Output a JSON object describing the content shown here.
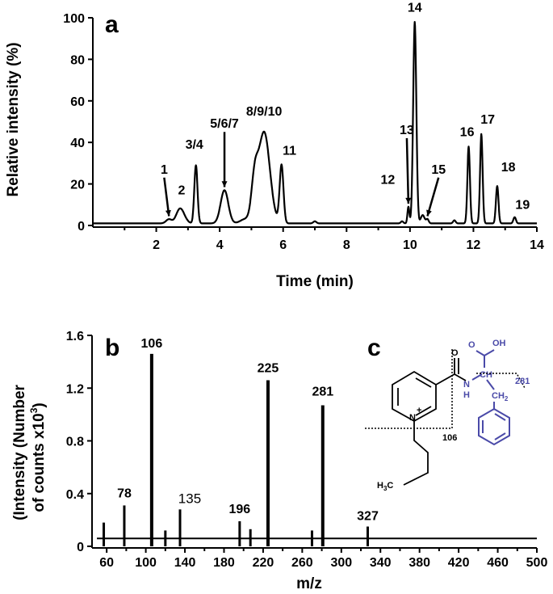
{
  "chart_data": [
    {
      "type": "line",
      "panel_label": "a",
      "xlabel": "Time (min)",
      "ylabel": "Relative intensity (%)",
      "xlim": [
        0,
        14
      ],
      "ylim": [
        0,
        100
      ],
      "x_ticks": [
        2,
        4,
        6,
        8,
        10,
        12,
        14
      ],
      "y_ticks": [
        0,
        20,
        40,
        60,
        80,
        100
      ],
      "x_tick_labels": [
        "2",
        "4",
        "6",
        "8",
        "10",
        "12",
        "14"
      ],
      "y_tick_labels": [
        "0",
        "20",
        "40",
        "60",
        "80",
        "100"
      ],
      "peaks": [
        {
          "label": "1",
          "time": 2.4,
          "intensity": 3
        },
        {
          "label": "2",
          "time": 2.8,
          "intensity": 6
        },
        {
          "label": "3/4",
          "time": 3.25,
          "intensity": 29
        },
        {
          "label": "5/6/7",
          "time": 4.15,
          "intensity": 17
        },
        {
          "label": "8/9/10",
          "time": 5.4,
          "intensity": 45
        },
        {
          "label": "11",
          "time": 5.95,
          "intensity": 29
        },
        {
          "label": "12",
          "time": 9.75,
          "intensity": 2
        },
        {
          "label": "13",
          "time": 9.95,
          "intensity": 9
        },
        {
          "label": "14",
          "time": 10.15,
          "intensity": 98
        },
        {
          "label": "15",
          "time": 10.55,
          "intensity": 3
        },
        {
          "label": "16",
          "time": 11.85,
          "intensity": 38
        },
        {
          "label": "17",
          "time": 12.25,
          "intensity": 44
        },
        {
          "label": "18",
          "time": 12.75,
          "intensity": 19
        },
        {
          "label": "19",
          "time": 13.3,
          "intensity": 4
        }
      ]
    },
    {
      "type": "bar",
      "panel_label": "b",
      "xlabel": "m/z",
      "ylabel_line1": "(Intensity (Number",
      "ylabel_line2": "of counts x10",
      "ylabel_sup": "3",
      "ylabel_close": ")",
      "xlim": [
        45,
        500
      ],
      "ylim": [
        0,
        1.6
      ],
      "x_ticks": [
        60,
        100,
        140,
        180,
        220,
        260,
        300,
        340,
        380,
        420,
        460,
        500
      ],
      "x_tick_labels": [
        "60",
        "100",
        "140",
        "180",
        "220",
        "260",
        "300",
        "340",
        "380",
        "420",
        "460",
        "500"
      ],
      "y_ticks": [
        0,
        0.4,
        0.8,
        1.2,
        1.6
      ],
      "y_tick_labels": [
        "0",
        "0.4",
        "0.8",
        "1.2",
        "1.6"
      ],
      "baseline": 0.06,
      "peaks": [
        {
          "mz": 57,
          "intensity": 0.18
        },
        {
          "mz": 78,
          "intensity": 0.31,
          "label": "78"
        },
        {
          "mz": 106,
          "intensity": 1.46,
          "label": "106"
        },
        {
          "mz": 120,
          "intensity": 0.12
        },
        {
          "mz": 135,
          "intensity": 0.28,
          "label": "135"
        },
        {
          "mz": 196,
          "intensity": 0.19,
          "label": "196"
        },
        {
          "mz": 207,
          "intensity": 0.13
        },
        {
          "mz": 225,
          "intensity": 1.26,
          "label": "225"
        },
        {
          "mz": 270,
          "intensity": 0.12
        },
        {
          "mz": 281,
          "intensity": 1.07,
          "label": "281"
        },
        {
          "mz": 327,
          "intensity": 0.15,
          "label": "327"
        }
      ]
    }
  ],
  "structure": {
    "panel_label": "c",
    "atoms": {
      "O_carbonyl": "O",
      "OH": "OH",
      "O_acid": "O",
      "N_amide": "N",
      "H_amide": "H",
      "CH": "CH",
      "CH2": "CH",
      "CH2_sub": "2",
      "N_ring": "N",
      "N_charge": "+",
      "H3C": "H",
      "H3C_sub": "3",
      "H3C_c": "C"
    },
    "fragment_labels": {
      "f106": "106",
      "f281": "281"
    },
    "colors": {
      "blue": "#4a4aa8",
      "black": "#000000"
    }
  }
}
